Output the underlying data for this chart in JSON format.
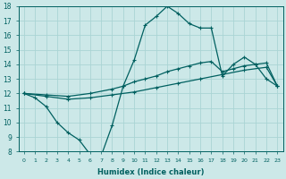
{
  "bg_color": "#cce8e8",
  "grid_color": "#aad4d4",
  "line_color": "#006060",
  "xlabel": "Humidex (Indice chaleur)",
  "ylim": [
    8,
    18
  ],
  "xlim": [
    -0.5,
    23.5
  ],
  "yticks": [
    8,
    9,
    10,
    11,
    12,
    13,
    14,
    15,
    16,
    17,
    18
  ],
  "xticks": [
    0,
    1,
    2,
    3,
    4,
    5,
    6,
    7,
    8,
    9,
    10,
    11,
    12,
    13,
    14,
    15,
    16,
    17,
    18,
    19,
    20,
    21,
    22,
    23
  ],
  "line1_x": [
    0,
    1,
    2,
    3,
    4,
    5,
    6,
    7,
    8,
    9,
    10,
    11,
    12,
    13,
    14,
    15,
    16,
    17,
    18,
    19,
    20,
    21,
    22,
    23
  ],
  "line1_y": [
    12.0,
    11.7,
    11.1,
    10.0,
    9.3,
    8.8,
    7.8,
    7.7,
    9.8,
    12.5,
    14.3,
    16.7,
    17.3,
    18.0,
    17.5,
    16.8,
    16.5,
    16.5,
    13.2,
    14.0,
    14.5,
    14.0,
    13.0,
    12.5
  ],
  "line2_x": [
    0,
    2,
    4,
    6,
    8,
    9,
    10,
    11,
    12,
    13,
    14,
    15,
    16,
    17,
    18,
    19,
    20,
    21,
    22,
    23
  ],
  "line2_y": [
    12.0,
    11.9,
    11.8,
    12.0,
    12.3,
    12.5,
    12.8,
    13.0,
    13.2,
    13.5,
    13.7,
    13.9,
    14.1,
    14.2,
    13.5,
    13.7,
    13.9,
    14.0,
    14.1,
    12.5
  ],
  "line3_x": [
    0,
    2,
    4,
    6,
    8,
    10,
    12,
    14,
    16,
    18,
    20,
    22,
    23
  ],
  "line3_y": [
    12.0,
    11.8,
    11.6,
    11.7,
    11.9,
    12.1,
    12.4,
    12.7,
    13.0,
    13.3,
    13.6,
    13.8,
    12.5
  ]
}
